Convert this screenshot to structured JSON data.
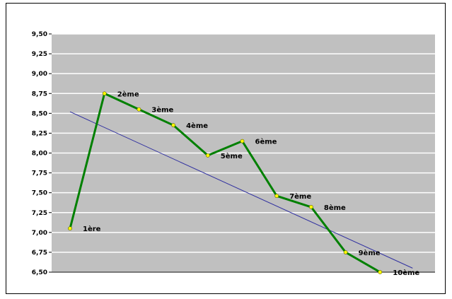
{
  "chart_data": {
    "type": "line",
    "title": "",
    "xlabel": "",
    "ylabel": "",
    "ylim": [
      6.5,
      9.5
    ],
    "y_ticks": [
      "9,50",
      "9,25",
      "9,00",
      "8,75",
      "8,50",
      "8,25",
      "8,00",
      "7,75",
      "7,50",
      "7,25",
      "7,00",
      "6,75",
      "6,50"
    ],
    "categories": [
      "1ère",
      "2ème",
      "3ème",
      "4ème",
      "5ème",
      "6ème",
      "7ème",
      "8ème",
      "9ème",
      "10ème"
    ],
    "series": [
      {
        "values": [
          7.05,
          8.75,
          8.55,
          8.35,
          7.97,
          8.15,
          7.46,
          7.32,
          6.75,
          6.5
        ],
        "color": "#008000",
        "marker": "yellow-circle"
      }
    ],
    "trendline": {
      "type": "linear",
      "start": 8.52,
      "end": 6.55,
      "color": "#3030a0"
    },
    "plot_background": "#c0c0c0",
    "grid": true,
    "grid_color": "#ffffff",
    "legend": "none"
  }
}
